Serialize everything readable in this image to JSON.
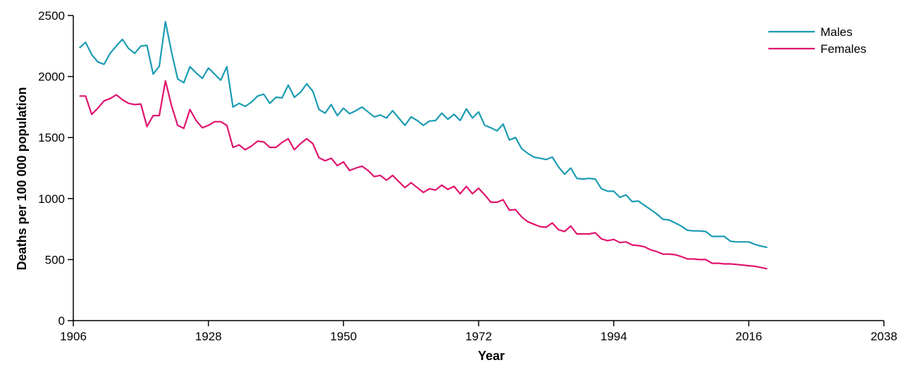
{
  "chart_data": {
    "type": "line",
    "xlabel": "Year",
    "ylabel": "Deaths per 100 000 population",
    "xlim": [
      1906,
      2038
    ],
    "ylim": [
      0,
      2500
    ],
    "xticks": [
      1906,
      1928,
      1950,
      1972,
      1994,
      2016,
      2038
    ],
    "yticks": [
      0,
      500,
      1000,
      1500,
      2000,
      2500
    ],
    "grid": false,
    "legend": "top-right",
    "colors": {
      "Males": "#1a9bb3",
      "Females": "#e0136e"
    },
    "series": [
      {
        "name": "Males",
        "color": "#1a9bb3",
        "points": [
          [
            1907,
            2235
          ],
          [
            1908,
            2280
          ],
          [
            1909,
            2180
          ],
          [
            1910,
            2120
          ],
          [
            1911,
            2100
          ],
          [
            1912,
            2190
          ],
          [
            1913,
            2250
          ],
          [
            1914,
            2305
          ],
          [
            1915,
            2230
          ],
          [
            1916,
            2190
          ],
          [
            1917,
            2250
          ],
          [
            1918,
            2255
          ],
          [
            1919,
            2020
          ],
          [
            1920,
            2085
          ],
          [
            1921,
            2450
          ],
          [
            1922,
            2200
          ],
          [
            1923,
            1980
          ],
          [
            1924,
            1950
          ],
          [
            1925,
            2080
          ],
          [
            1926,
            2030
          ],
          [
            1927,
            1985
          ],
          [
            1928,
            2070
          ],
          [
            1929,
            2020
          ],
          [
            1930,
            1970
          ],
          [
            1931,
            2080
          ],
          [
            1932,
            1750
          ],
          [
            1933,
            1780
          ],
          [
            1934,
            1755
          ],
          [
            1935,
            1790
          ],
          [
            1936,
            1840
          ],
          [
            1937,
            1855
          ],
          [
            1938,
            1780
          ],
          [
            1939,
            1830
          ],
          [
            1940,
            1825
          ],
          [
            1941,
            1930
          ],
          [
            1942,
            1830
          ],
          [
            1943,
            1870
          ],
          [
            1944,
            1940
          ],
          [
            1945,
            1880
          ],
          [
            1946,
            1730
          ],
          [
            1947,
            1700
          ],
          [
            1948,
            1770
          ],
          [
            1949,
            1680
          ],
          [
            1950,
            1740
          ],
          [
            1951,
            1695
          ],
          [
            1952,
            1720
          ],
          [
            1953,
            1750
          ],
          [
            1954,
            1710
          ],
          [
            1955,
            1670
          ],
          [
            1956,
            1685
          ],
          [
            1957,
            1660
          ],
          [
            1958,
            1720
          ],
          [
            1959,
            1660
          ],
          [
            1960,
            1600
          ],
          [
            1961,
            1670
          ],
          [
            1962,
            1640
          ],
          [
            1963,
            1600
          ],
          [
            1964,
            1635
          ],
          [
            1965,
            1640
          ],
          [
            1966,
            1700
          ],
          [
            1967,
            1650
          ],
          [
            1968,
            1690
          ],
          [
            1969,
            1640
          ],
          [
            1970,
            1735
          ],
          [
            1971,
            1660
          ],
          [
            1972,
            1710
          ],
          [
            1973,
            1600
          ],
          [
            1974,
            1580
          ],
          [
            1975,
            1555
          ],
          [
            1976,
            1610
          ],
          [
            1977,
            1480
          ],
          [
            1978,
            1500
          ],
          [
            1979,
            1410
          ],
          [
            1980,
            1370
          ],
          [
            1981,
            1340
          ],
          [
            1982,
            1330
          ],
          [
            1983,
            1320
          ],
          [
            1984,
            1340
          ],
          [
            1985,
            1260
          ],
          [
            1986,
            1200
          ],
          [
            1987,
            1250
          ],
          [
            1988,
            1165
          ],
          [
            1989,
            1160
          ],
          [
            1990,
            1165
          ],
          [
            1991,
            1160
          ],
          [
            1992,
            1080
          ],
          [
            1993,
            1060
          ],
          [
            1994,
            1060
          ],
          [
            1995,
            1010
          ],
          [
            1996,
            1030
          ],
          [
            1997,
            975
          ],
          [
            1998,
            980
          ],
          [
            1999,
            945
          ],
          [
            2000,
            910
          ],
          [
            2001,
            875
          ],
          [
            2002,
            830
          ],
          [
            2003,
            825
          ],
          [
            2004,
            800
          ],
          [
            2005,
            775
          ],
          [
            2006,
            740
          ],
          [
            2007,
            735
          ],
          [
            2008,
            735
          ],
          [
            2009,
            730
          ],
          [
            2010,
            690
          ],
          [
            2011,
            690
          ],
          [
            2012,
            690
          ],
          [
            2013,
            650
          ],
          [
            2014,
            645
          ],
          [
            2015,
            645
          ],
          [
            2016,
            645
          ],
          [
            2017,
            625
          ],
          [
            2018,
            610
          ],
          [
            2019,
            600
          ]
        ]
      },
      {
        "name": "Females",
        "color": "#e0136e",
        "points": [
          [
            1907,
            1840
          ],
          [
            1908,
            1840
          ],
          [
            1909,
            1690
          ],
          [
            1910,
            1740
          ],
          [
            1911,
            1800
          ],
          [
            1912,
            1820
          ],
          [
            1913,
            1850
          ],
          [
            1914,
            1810
          ],
          [
            1915,
            1780
          ],
          [
            1916,
            1770
          ],
          [
            1917,
            1775
          ],
          [
            1918,
            1590
          ],
          [
            1919,
            1680
          ],
          [
            1920,
            1680
          ],
          [
            1921,
            1965
          ],
          [
            1922,
            1760
          ],
          [
            1923,
            1600
          ],
          [
            1924,
            1575
          ],
          [
            1925,
            1730
          ],
          [
            1926,
            1640
          ],
          [
            1927,
            1580
          ],
          [
            1928,
            1600
          ],
          [
            1929,
            1630
          ],
          [
            1930,
            1630
          ],
          [
            1931,
            1600
          ],
          [
            1932,
            1420
          ],
          [
            1933,
            1440
          ],
          [
            1934,
            1400
          ],
          [
            1935,
            1430
          ],
          [
            1936,
            1470
          ],
          [
            1937,
            1465
          ],
          [
            1938,
            1420
          ],
          [
            1939,
            1420
          ],
          [
            1940,
            1460
          ],
          [
            1941,
            1490
          ],
          [
            1942,
            1400
          ],
          [
            1943,
            1450
          ],
          [
            1944,
            1490
          ],
          [
            1945,
            1450
          ],
          [
            1946,
            1335
          ],
          [
            1947,
            1310
          ],
          [
            1948,
            1330
          ],
          [
            1949,
            1270
          ],
          [
            1950,
            1300
          ],
          [
            1951,
            1230
          ],
          [
            1952,
            1250
          ],
          [
            1953,
            1265
          ],
          [
            1954,
            1230
          ],
          [
            1955,
            1180
          ],
          [
            1956,
            1190
          ],
          [
            1957,
            1150
          ],
          [
            1958,
            1190
          ],
          [
            1959,
            1140
          ],
          [
            1960,
            1090
          ],
          [
            1961,
            1130
          ],
          [
            1962,
            1090
          ],
          [
            1963,
            1050
          ],
          [
            1964,
            1080
          ],
          [
            1965,
            1070
          ],
          [
            1966,
            1110
          ],
          [
            1967,
            1075
          ],
          [
            1968,
            1100
          ],
          [
            1969,
            1040
          ],
          [
            1970,
            1100
          ],
          [
            1971,
            1040
          ],
          [
            1972,
            1085
          ],
          [
            1973,
            1030
          ],
          [
            1974,
            970
          ],
          [
            1975,
            970
          ],
          [
            1976,
            990
          ],
          [
            1977,
            905
          ],
          [
            1978,
            910
          ],
          [
            1979,
            850
          ],
          [
            1980,
            810
          ],
          [
            1981,
            790
          ],
          [
            1982,
            770
          ],
          [
            1983,
            765
          ],
          [
            1984,
            800
          ],
          [
            1985,
            745
          ],
          [
            1986,
            730
          ],
          [
            1987,
            775
          ],
          [
            1988,
            710
          ],
          [
            1989,
            710
          ],
          [
            1990,
            710
          ],
          [
            1991,
            720
          ],
          [
            1992,
            670
          ],
          [
            1993,
            655
          ],
          [
            1994,
            665
          ],
          [
            1995,
            640
          ],
          [
            1996,
            645
          ],
          [
            1997,
            620
          ],
          [
            1998,
            615
          ],
          [
            1999,
            605
          ],
          [
            2000,
            580
          ],
          [
            2001,
            565
          ],
          [
            2002,
            545
          ],
          [
            2003,
            545
          ],
          [
            2004,
            540
          ],
          [
            2005,
            525
          ],
          [
            2006,
            505
          ],
          [
            2007,
            505
          ],
          [
            2008,
            500
          ],
          [
            2009,
            500
          ],
          [
            2010,
            470
          ],
          [
            2011,
            470
          ],
          [
            2012,
            465
          ],
          [
            2013,
            465
          ],
          [
            2014,
            460
          ],
          [
            2015,
            455
          ],
          [
            2016,
            450
          ],
          [
            2017,
            445
          ],
          [
            2018,
            435
          ],
          [
            2019,
            425
          ]
        ]
      }
    ]
  }
}
